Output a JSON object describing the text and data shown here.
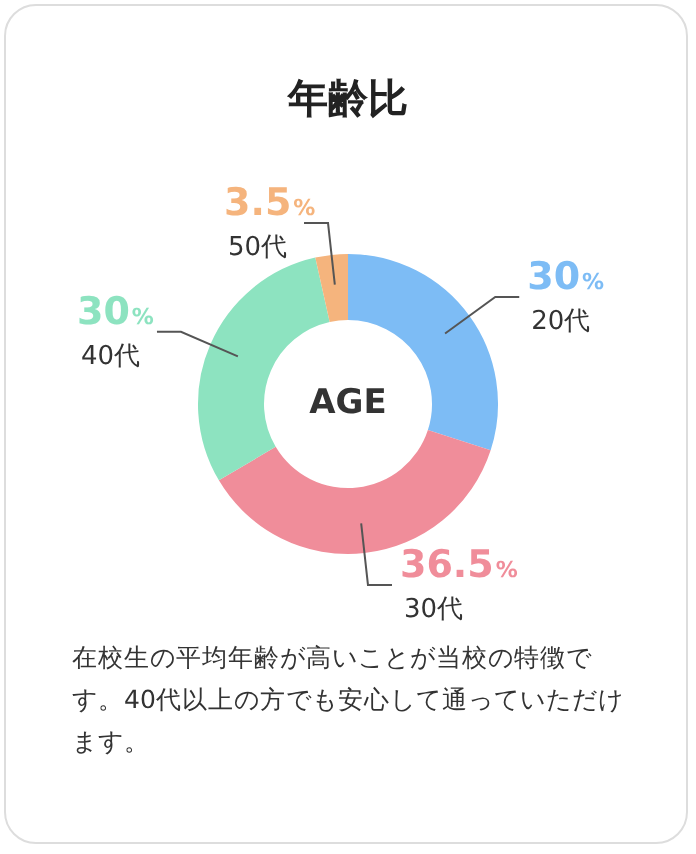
{
  "chart_data": {
    "type": "donut",
    "title": "年齢比",
    "categories": [
      "20代",
      "30代",
      "40代",
      "50代"
    ],
    "values": [
      30,
      36.5,
      30,
      3.5
    ],
    "value_labels": [
      "30%",
      "36.5%",
      "30%",
      "3.5%"
    ],
    "colors": [
      "#7dbcf5",
      "#f08d9a",
      "#8de3c0",
      "#f5b47d"
    ],
    "annotations": [
      "AGE",
      "在校生の平均年齢が高いことが当校の特徴です。40代以上の方でも安心して通っていただけます。"
    ]
  }
}
